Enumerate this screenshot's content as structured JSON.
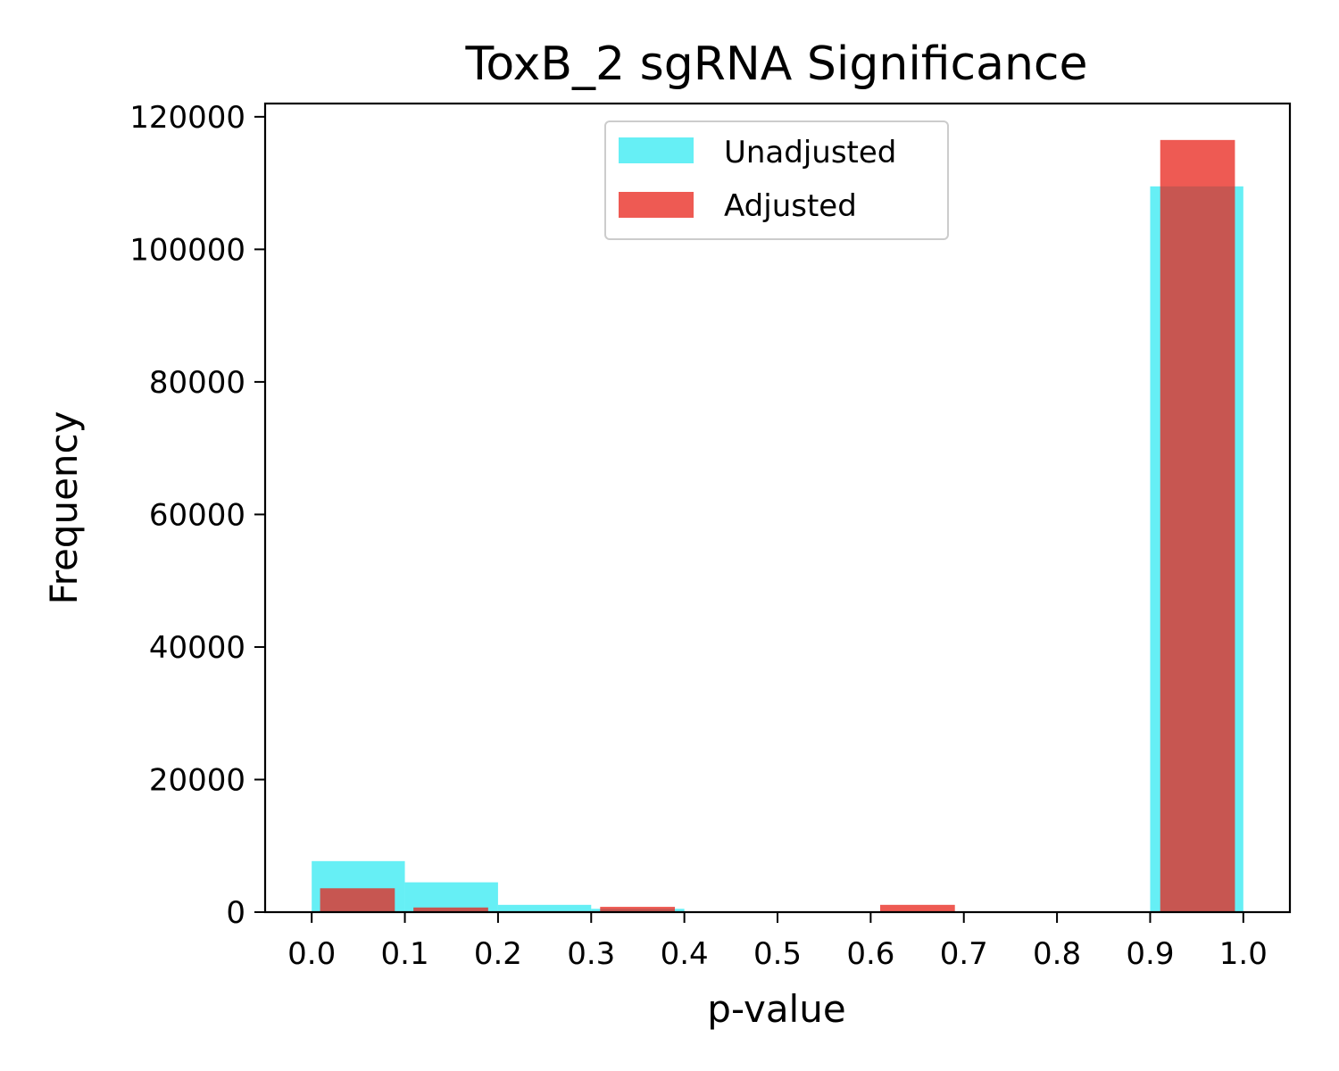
{
  "chart_data": {
    "type": "bar",
    "title": "ToxB_2 sgRNA Significance",
    "xlabel": "p-value",
    "ylabel": "Frequency",
    "xlim": [
      -0.05,
      1.05
    ],
    "ylim": [
      0,
      122000
    ],
    "xticks": [
      "0.0",
      "0.1",
      "0.2",
      "0.3",
      "0.4",
      "0.5",
      "0.6",
      "0.7",
      "0.8",
      "0.9",
      "1.0"
    ],
    "yticks": [
      "0",
      "20000",
      "40000",
      "60000",
      "80000",
      "100000",
      "120000"
    ],
    "legend_position": "upper center",
    "series": [
      {
        "name": "Unadjusted",
        "color": "#00e5ee",
        "opacity": 0.6,
        "bins": [
          {
            "x0": 0.0,
            "x1": 0.1,
            "value": 7700
          },
          {
            "x0": 0.1,
            "x1": 0.2,
            "value": 4500
          },
          {
            "x0": 0.2,
            "x1": 0.3,
            "value": 1100
          },
          {
            "x0": 0.3,
            "x1": 0.4,
            "value": 500
          },
          {
            "x0": 0.4,
            "x1": 0.5,
            "value": 0
          },
          {
            "x0": 0.5,
            "x1": 0.6,
            "value": 0
          },
          {
            "x0": 0.6,
            "x1": 0.7,
            "value": 0
          },
          {
            "x0": 0.7,
            "x1": 0.8,
            "value": 0
          },
          {
            "x0": 0.8,
            "x1": 0.9,
            "value": 0
          },
          {
            "x0": 0.9,
            "x1": 1.0,
            "value": 109500
          }
        ]
      },
      {
        "name": "Adjusted",
        "color": "#e8231a",
        "opacity": 0.75,
        "bins": [
          {
            "x0": 0.009,
            "x1": 0.0892,
            "value": 3600
          },
          {
            "x0": 0.1092,
            "x1": 0.1894,
            "value": 700
          },
          {
            "x0": 0.2094,
            "x1": 0.2896,
            "value": 0
          },
          {
            "x0": 0.3096,
            "x1": 0.3898,
            "value": 800
          },
          {
            "x0": 0.4098,
            "x1": 0.49,
            "value": 0
          },
          {
            "x0": 0.51,
            "x1": 0.5902,
            "value": 0
          },
          {
            "x0": 0.6102,
            "x1": 0.6904,
            "value": 1100
          },
          {
            "x0": 0.7104,
            "x1": 0.7906,
            "value": 0
          },
          {
            "x0": 0.8106,
            "x1": 0.8908,
            "value": 0
          },
          {
            "x0": 0.9108,
            "x1": 0.991,
            "value": 116500
          }
        ]
      }
    ]
  }
}
